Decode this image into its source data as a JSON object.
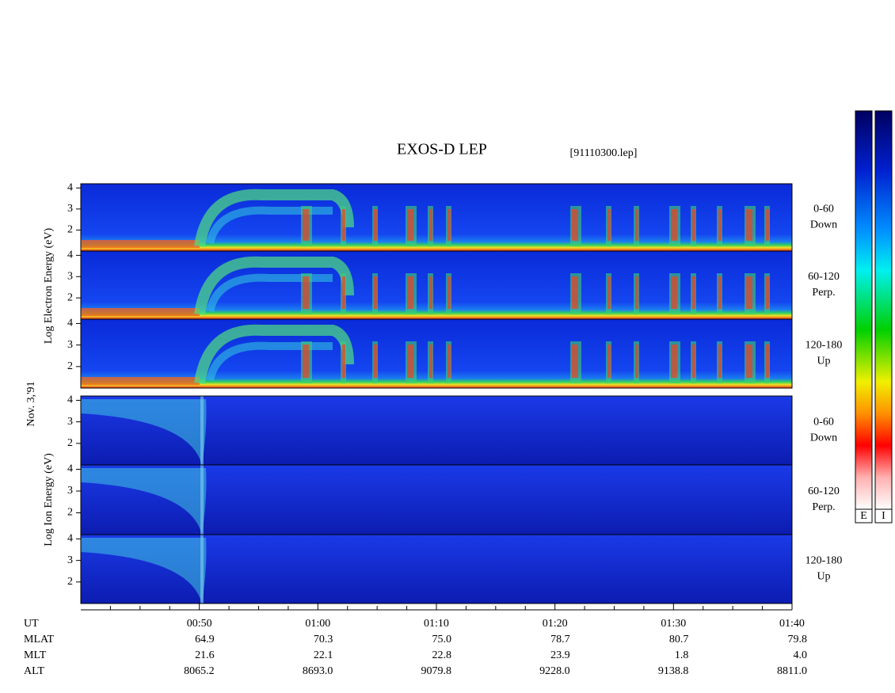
{
  "chart_data": {
    "type": "spectrogram",
    "title": "EXOS-D LEP",
    "subtitle": "[91110300.lep]",
    "date_label": "Nov. 3,'91",
    "ylim": [
      1,
      4.2
    ],
    "yticks": [
      2,
      3,
      4
    ],
    "xlim": [
      40,
      100
    ],
    "xticks": [
      {
        "value": 50,
        "label": "00:50"
      },
      {
        "value": 60,
        "label": "01:00"
      },
      {
        "value": 70,
        "label": "01:10"
      },
      {
        "value": 80,
        "label": "01:20"
      },
      {
        "value": 90,
        "label": "01:30"
      },
      {
        "value": 100,
        "label": "01:40"
      }
    ],
    "minor_xticks": [
      42.5,
      45,
      47.5,
      52.5,
      55,
      57.5,
      62.5,
      65,
      67.5,
      72.5,
      75,
      77.5,
      82.5,
      85,
      87.5,
      92.5,
      95,
      97.5
    ],
    "x_row_label": "UT",
    "groups": [
      {
        "name": "electron",
        "ylabel": "Log Electron Energy (eV)"
      },
      {
        "name": "ion",
        "ylabel": "Log Ion Energy (eV)"
      }
    ],
    "panels": [
      {
        "group": 0,
        "angle": "0-60",
        "direction": "Down"
      },
      {
        "group": 0,
        "angle": "60-120",
        "direction": "Perp."
      },
      {
        "group": 0,
        "angle": "120-180",
        "direction": "Up"
      },
      {
        "group": 1,
        "angle": "0-60",
        "direction": "Down"
      },
      {
        "group": 1,
        "angle": "60-120",
        "direction": "Perp."
      },
      {
        "group": 1,
        "angle": "120-180",
        "direction": "Up"
      }
    ],
    "ephemeris": [
      {
        "name": "MLAT",
        "values": [
          "64.9",
          "70.3",
          "75.0",
          "78.7",
          "80.7",
          "79.8"
        ]
      },
      {
        "name": "MLT",
        "values": [
          "21.6",
          "22.1",
          "22.8",
          "23.9",
          "1.8",
          "4.0"
        ]
      },
      {
        "name": "ALT",
        "values": [
          "8065.2",
          "8693.0",
          "9079.8",
          "9228.0",
          "9138.8",
          "8811.0"
        ]
      }
    ],
    "colorbars": [
      "E",
      "I"
    ]
  }
}
